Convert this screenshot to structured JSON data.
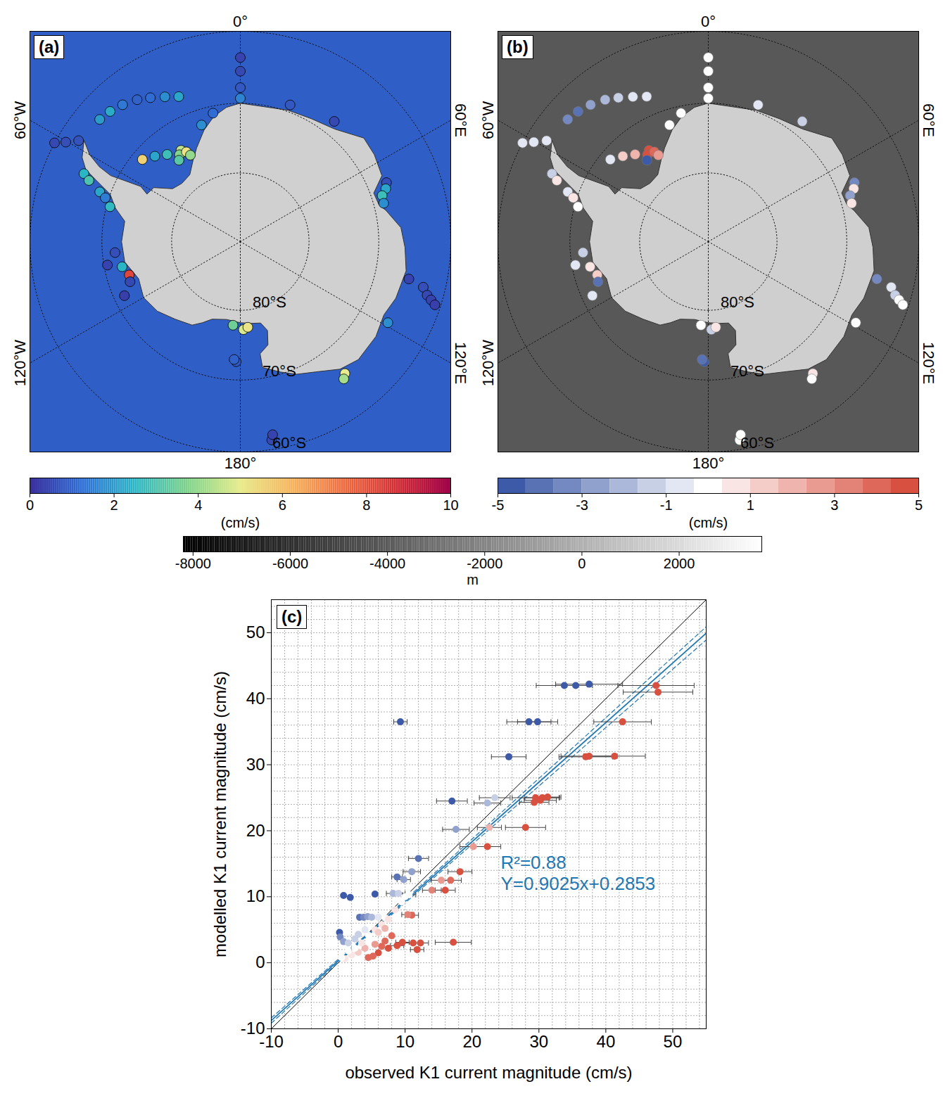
{
  "chart_data": [
    {
      "type": "map",
      "panel": "(a)",
      "lon": [
        0,
        0,
        0,
        0,
        -23,
        -27.5,
        -32,
        -36,
        -40.7,
        -45,
        -49,
        -62,
        -60.3,
        -58,
        -66.5,
        -68,
        -70.5,
        -72,
        -75,
        -33,
        -35,
        -31,
        -37,
        -30,
        -40,
        -45,
        -50,
        -18.4,
        -12,
        20,
        38,
        68,
        70,
        72,
        75,
        102.5,
        104,
        106,
        107,
        108,
        118.8,
        141.6,
        143,
        171,
        170.5,
        -178,
        -177,
        178,
        175,
        -175,
        -106.7,
        -110,
        -102,
        -115,
        -100,
        -95
      ],
      "lat": [
        -63.6,
        -65.5,
        -67.8,
        -69.3,
        -67.3,
        -66.5,
        -65.6,
        -64.8,
        -64.1,
        -63.6,
        -63.3,
        -60,
        -61.3,
        -62.7,
        -65.5,
        -66.5,
        -68.5,
        -69.5,
        -70.5,
        -74.2,
        -74.6,
        -74.8,
        -75.2,
        -75.5,
        -73.5,
        -72.5,
        -71.5,
        -72.2,
        -71,
        -69,
        -68,
        -67.3,
        -67.7,
        -68.5,
        -68.6,
        -65.2,
        -63,
        -62.2,
        -61.5,
        -60.8,
        -65.8,
        -65.8,
        -65.3,
        -61.3,
        -62,
        -72.6,
        -72.9,
        -77.2,
        -77.5,
        -77.8,
        -73.2,
        -73,
        -72.5,
        -71.5,
        -70.5,
        -71.8
      ],
      "values": [
        0.4,
        0.5,
        0.8,
        1.6,
        2.2,
        1.8,
        1.2,
        1.0,
        1.4,
        2.3,
        2.0,
        0.5,
        0.6,
        0.7,
        2.5,
        3.0,
        2.2,
        1.5,
        2.6,
        4.5,
        3.8,
        5.2,
        3.2,
        4.0,
        2.8,
        2.2,
        5.6,
        1.8,
        1.2,
        0.8,
        0.5,
        0.6,
        2.2,
        2.8,
        1.8,
        0.4,
        0.6,
        0.5,
        0.4,
        0.3,
        1.8,
        5.0,
        4.2,
        0.5,
        0.4,
        0.8,
        1.0,
        4.8,
        5.2,
        3.5,
        8.2,
        0.5,
        2.5,
        0.3,
        0.4,
        0.6
      ],
      "meridians": [
        {
          "lon": 0,
          "label": "0°"
        },
        {
          "lon": 60,
          "label": "60°E"
        },
        {
          "lon": 120,
          "label": "120°E"
        },
        {
          "lon": 180,
          "label": "180°"
        },
        {
          "lon": -120,
          "label": "120°W"
        },
        {
          "lon": -60,
          "label": "60°W"
        }
      ],
      "parallels": [
        {
          "lat": -80,
          "label": "80°S"
        },
        {
          "lat": -70,
          "label": "70°S"
        },
        {
          "lat": -60,
          "label": "60°S"
        }
      ],
      "coastline": [
        [
          0,
          -70
        ],
        [
          10,
          -70.2
        ],
        [
          20,
          -69.8
        ],
        [
          30,
          -69.5
        ],
        [
          40,
          -68.8
        ],
        [
          50,
          -66.8
        ],
        [
          57,
          -67
        ],
        [
          65,
          -67.5
        ],
        [
          70,
          -69.5
        ],
        [
          75,
          -69.3
        ],
        [
          78,
          -68.5
        ],
        [
          85,
          -66.8
        ],
        [
          92,
          -66.3
        ],
        [
          100,
          -65.8
        ],
        [
          110,
          -66.2
        ],
        [
          117,
          -66.8
        ],
        [
          125,
          -66.2
        ],
        [
          135,
          -66
        ],
        [
          142,
          -66.7
        ],
        [
          150,
          -68.3
        ],
        [
          157,
          -69.2
        ],
        [
          163,
          -70.3
        ],
        [
          170,
          -71.5
        ],
        [
          170,
          -73.5
        ],
        [
          165,
          -74.5
        ],
        [
          163,
          -76.5
        ],
        [
          166,
          -77.8
        ],
        [
          172,
          -78
        ],
        [
          180,
          -78.2
        ],
        [
          -170,
          -78.5
        ],
        [
          -160,
          -78
        ],
        [
          -155,
          -77
        ],
        [
          -150,
          -76
        ],
        [
          -140,
          -75.3
        ],
        [
          -130,
          -74.3
        ],
        [
          -120,
          -73.8
        ],
        [
          -110,
          -74.3
        ],
        [
          -100,
          -73
        ],
        [
          -90,
          -72.8
        ],
        [
          -80,
          -73
        ],
        [
          -75,
          -71.3
        ],
        [
          -70,
          -70
        ],
        [
          -67,
          -67.5
        ],
        [
          -65,
          -65.5
        ],
        [
          -62,
          -64.3
        ],
        [
          -57,
          -63.3
        ],
        [
          -60,
          -65
        ],
        [
          -62,
          -67
        ],
        [
          -63,
          -69
        ],
        [
          -62,
          -71.5
        ],
        [
          -61,
          -73.5
        ],
        [
          -63,
          -74.8
        ],
        [
          -58,
          -75.2
        ],
        [
          -52,
          -77.5
        ],
        [
          -45,
          -78
        ],
        [
          -37,
          -77.8
        ],
        [
          -30,
          -76.3
        ],
        [
          -25,
          -75
        ],
        [
          -18,
          -73
        ],
        [
          -12,
          -71.5
        ],
        [
          -6,
          -70.5
        ]
      ],
      "colorbar": {
        "lim": [
          0,
          10
        ],
        "ticks": [
          0,
          2,
          4,
          6,
          8,
          10
        ],
        "label": "(cm/s)"
      }
    },
    {
      "type": "map",
      "panel": "(b)",
      "lon": [
        0,
        0,
        0,
        0,
        -23,
        -27.5,
        -32,
        -36,
        -40.7,
        -45,
        -49,
        -62,
        -60.3,
        -58,
        -66.5,
        -68,
        -70.5,
        -72,
        -75,
        -33,
        -35,
        -31,
        -37,
        -30,
        -40,
        -45,
        -50,
        -18.4,
        -12,
        20,
        38,
        68,
        70,
        72,
        75,
        102.5,
        104,
        106,
        107,
        108,
        118.8,
        141.6,
        143,
        171,
        170.5,
        -178,
        -177,
        178,
        175,
        -175,
        -106.7,
        -110,
        -102,
        -115,
        -100,
        -95
      ],
      "lat": [
        -63.6,
        -65.5,
        -67.8,
        -69.3,
        -67.3,
        -66.5,
        -65.6,
        -64.8,
        -64.1,
        -63.6,
        -63.3,
        -60,
        -61.3,
        -62.7,
        -65.5,
        -66.5,
        -68.5,
        -69.5,
        -70.5,
        -74.2,
        -74.6,
        -74.8,
        -75.2,
        -75.5,
        -73.5,
        -72.5,
        -71.5,
        -72.2,
        -71,
        -69,
        -68,
        -67.3,
        -67.7,
        -68.5,
        -68.6,
        -65.2,
        -63,
        -62.2,
        -61.5,
        -60.8,
        -65.8,
        -65.8,
        -65.3,
        -61.3,
        -62,
        -72.6,
        -72.9,
        -77.2,
        -77.5,
        -77.8,
        -73.2,
        -73,
        -72.5,
        -71.5,
        -70.5,
        -71.8
      ],
      "values": [
        0,
        0,
        -0.1,
        0.1,
        -0.6,
        -0.8,
        -1.2,
        -1.8,
        -2.8,
        -4.2,
        -3.5,
        -0.5,
        -0.8,
        -1.0,
        -1.5,
        0.6,
        -0.7,
        0.4,
        -0.3,
        4.5,
        5,
        3.8,
        -4.5,
        2.5,
        1.8,
        1.0,
        -0.4,
        0.2,
        -0.3,
        -0.4,
        -1.3,
        -3.6,
        0.9,
        -2.5,
        0.7,
        -3.4,
        -0.9,
        -1.2,
        -0.3,
        0,
        -0.2,
        0.8,
        0.3,
        0,
        0,
        -4.8,
        -4.2,
        -1.6,
        0.9,
        0.2,
        1.4,
        -3.8,
        0.5,
        -1.0,
        -0.8,
        -1.5
      ],
      "meridians": [
        {
          "lon": 0,
          "label": "0°"
        },
        {
          "lon": 60,
          "label": "60°E"
        },
        {
          "lon": 120,
          "label": "120°E"
        },
        {
          "lon": 180,
          "label": "180°"
        },
        {
          "lon": -120,
          "label": "120°W"
        },
        {
          "lon": -60,
          "label": "60°W"
        }
      ],
      "parallels": [
        {
          "lat": -80,
          "label": "80°S"
        },
        {
          "lat": -70,
          "label": "70°S"
        },
        {
          "lat": -60,
          "label": "60°S"
        }
      ],
      "coastline": [
        [
          0,
          -70
        ],
        [
          10,
          -70.2
        ],
        [
          20,
          -69.8
        ],
        [
          30,
          -69.5
        ],
        [
          40,
          -68.8
        ],
        [
          50,
          -66.8
        ],
        [
          57,
          -67
        ],
        [
          65,
          -67.5
        ],
        [
          70,
          -69.5
        ],
        [
          75,
          -69.3
        ],
        [
          78,
          -68.5
        ],
        [
          85,
          -66.8
        ],
        [
          92,
          -66.3
        ],
        [
          100,
          -65.8
        ],
        [
          110,
          -66.2
        ],
        [
          117,
          -66.8
        ],
        [
          125,
          -66.2
        ],
        [
          135,
          -66
        ],
        [
          142,
          -66.7
        ],
        [
          150,
          -68.3
        ],
        [
          157,
          -69.2
        ],
        [
          163,
          -70.3
        ],
        [
          170,
          -71.5
        ],
        [
          170,
          -73.5
        ],
        [
          165,
          -74.5
        ],
        [
          163,
          -76.5
        ],
        [
          166,
          -77.8
        ],
        [
          172,
          -78
        ],
        [
          180,
          -78.2
        ],
        [
          -170,
          -78.5
        ],
        [
          -160,
          -78
        ],
        [
          -155,
          -77
        ],
        [
          -150,
          -76
        ],
        [
          -140,
          -75.3
        ],
        [
          -130,
          -74.3
        ],
        [
          -120,
          -73.8
        ],
        [
          -110,
          -74.3
        ],
        [
          -100,
          -73
        ],
        [
          -90,
          -72.8
        ],
        [
          -80,
          -73
        ],
        [
          -75,
          -71.3
        ],
        [
          -70,
          -70
        ],
        [
          -67,
          -67.5
        ],
        [
          -65,
          -65.5
        ],
        [
          -62,
          -64.3
        ],
        [
          -57,
          -63.3
        ],
        [
          -60,
          -65
        ],
        [
          -62,
          -67
        ],
        [
          -63,
          -69
        ],
        [
          -62,
          -71.5
        ],
        [
          -61,
          -73.5
        ],
        [
          -63,
          -74.8
        ],
        [
          -58,
          -75.2
        ],
        [
          -52,
          -77.5
        ],
        [
          -45,
          -78
        ],
        [
          -37,
          -77.8
        ],
        [
          -30,
          -76.3
        ],
        [
          -25,
          -75
        ],
        [
          -18,
          -73
        ],
        [
          -12,
          -71.5
        ],
        [
          -6,
          -70.5
        ]
      ],
      "colorbar": {
        "lim": [
          -5,
          5
        ],
        "ticks": [
          -5,
          -3,
          -1,
          1,
          3,
          5
        ],
        "label": "(cm/s)"
      }
    },
    {
      "type": "scatter",
      "panel": "(c)",
      "x": [
        33.8,
        35.5,
        37.5,
        9.3,
        28.5,
        29.8,
        25.5,
        17.0,
        17.6,
        12.0,
        11.0,
        9.8,
        8.8,
        0.8,
        1.8,
        5.5,
        8.2,
        9.0,
        23.4,
        22.3,
        22.6,
        0.2,
        0.3,
        0.8,
        3.2,
        3.8,
        4.4,
        5.0,
        6.0,
        7.0,
        1.5,
        2.5,
        47.5,
        47.8,
        42.5,
        37.0,
        37.5,
        41.3,
        29.5,
        30.5,
        31.3,
        29.3,
        30.2,
        28.0,
        20.2,
        22.3,
        18.2,
        16.8,
        15.4,
        16.0,
        14.0,
        10.6,
        11.0,
        10.4,
        17.2,
        12.3,
        11.2,
        9.6,
        8.8,
        11.8,
        7.5,
        6.0,
        5.2,
        4.5,
        7.0,
        8.0,
        6.5,
        2.0,
        3.0,
        4.0,
        5.5,
        1.0,
        2.5,
        3.5,
        4.5,
        5.5,
        6.5,
        7.5,
        8.5,
        9.5,
        10.0,
        0.5,
        1.5,
        3.0,
        4.0,
        6.0,
        7.0
      ],
      "values": [
        42.0,
        42.0,
        42.2,
        36.5,
        36.5,
        36.5,
        31.2,
        24.5,
        20.2,
        15.8,
        13.8,
        12.6,
        13.0,
        10.2,
        9.9,
        10.4,
        10.5,
        10.5,
        25.0,
        24.2,
        20.5,
        4.6,
        3.9,
        3.2,
        6.9,
        6.9,
        7.0,
        6.9,
        6.9,
        6.8,
        3.0,
        3.6,
        42.0,
        41.0,
        36.5,
        31.2,
        31.3,
        31.3,
        25.0,
        25.0,
        25.1,
        24.3,
        24.6,
        20.5,
        17.6,
        17.6,
        13.8,
        12.5,
        12.5,
        11.0,
        11.0,
        10.3,
        7.2,
        7.3,
        3.1,
        3.0,
        3.0,
        3.1,
        2.6,
        2.0,
        2.2,
        1.5,
        1.0,
        0.8,
        3.3,
        4.1,
        2.5,
        1.2,
        1.6,
        2.2,
        2.8,
        0.6,
        2.2,
        3.0,
        4.2,
        5.0,
        5.8,
        6.6,
        8.0,
        9.2,
        10.0,
        0.8,
        1.8,
        4.3,
        5.0,
        4.6,
        5.2
      ],
      "xerr": [
        4.2,
        null,
        5.0,
        1.0,
        3.3,
        3.0,
        2.6,
        2.3,
        2.0,
        1.5,
        1.3,
        1.0,
        0.8,
        null,
        null,
        null,
        1.0,
        1.0,
        2.3,
        2.0,
        1.8,
        null,
        null,
        null,
        null,
        null,
        null,
        null,
        null,
        null,
        null,
        null,
        5.7,
        5.2,
        4.3,
        4.0,
        4.2,
        4.6,
        3.5,
        2.6,
        2.0,
        2.2,
        2.4,
        3.0,
        2.0,
        2.0,
        1.8,
        1.6,
        1.5,
        1.5,
        1.4,
        1.0,
        1.0,
        0.9,
        2.7,
        1.2,
        1.3,
        1.0,
        1.0,
        1.0,
        null,
        null,
        null,
        null,
        null,
        null,
        null,
        null,
        null,
        null,
        null,
        null,
        null,
        null,
        null,
        null,
        null,
        null,
        null,
        null,
        null,
        null,
        null,
        null,
        null,
        null,
        null,
        null
      ],
      "xlabel": "observed K1 current magnitude (cm/s)",
      "ylabel": "modelled K1 current magnitude (cm/s)",
      "xlim": [
        -10,
        55
      ],
      "ylim": [
        -10,
        55
      ],
      "xticks": [
        -10,
        0,
        10,
        20,
        30,
        40,
        50
      ],
      "yticks": [
        -10,
        0,
        10,
        20,
        30,
        40,
        50
      ],
      "xminor": [
        -10,
        -8,
        -6,
        -4,
        -2,
        0,
        2,
        4,
        6,
        8,
        10,
        12,
        14,
        16,
        18,
        20,
        22,
        24,
        26,
        28,
        30,
        32,
        34,
        36,
        38,
        40,
        42,
        44,
        46,
        48,
        50,
        52,
        54
      ],
      "yminor": [
        -10,
        -8,
        -6,
        -4,
        -2,
        0,
        2,
        4,
        6,
        8,
        10,
        12,
        14,
        16,
        18,
        20,
        22,
        24,
        26,
        28,
        30,
        32,
        34,
        36,
        38,
        40,
        42,
        44,
        46,
        48,
        50,
        52,
        54
      ],
      "grid": true,
      "fit": {
        "slope": 0.9025,
        "intercept": 0.2853,
        "label": "Y=0.9025x+0.2853",
        "r2_label": "R²=0.88",
        "color": "#1f77b4",
        "confidence": {
          "x": [
            -10,
            5,
            55
          ],
          "upper": [
            -8.35,
            4.95,
            50.9
          ],
          "lower": [
            -9.15,
            4.65,
            48.9
          ]
        }
      },
      "reference_line": {
        "x": [
          -10,
          55
        ],
        "y": [
          -10,
          55
        ],
        "color": "#000000"
      }
    },
    {
      "type": "colorbar",
      "xlim": [
        -8200,
        3700
      ],
      "xticks": [
        -8000,
        -6000,
        -4000,
        -2000,
        0,
        2000
      ],
      "xlabel": "m"
    }
  ]
}
